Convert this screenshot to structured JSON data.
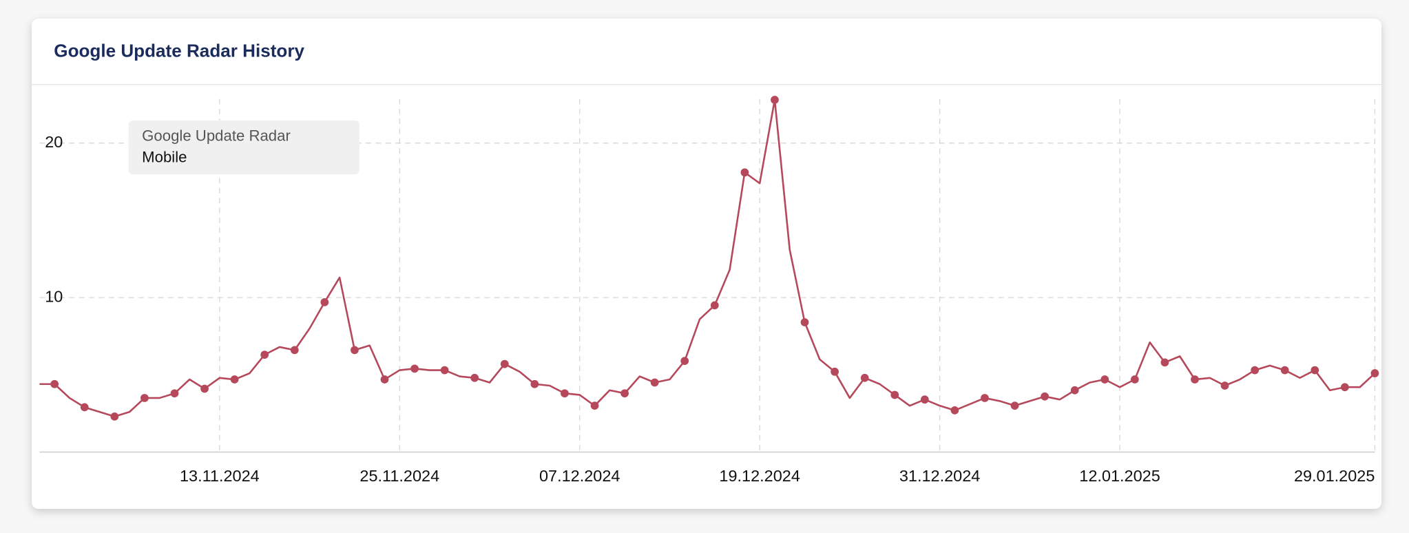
{
  "chart_data": {
    "type": "line",
    "title": "Google Update Radar History",
    "legend_title": "Google Update Radar",
    "x": [
      "01.11.2024",
      "02.11.2024",
      "03.11.2024",
      "04.11.2024",
      "05.11.2024",
      "06.11.2024",
      "07.11.2024",
      "08.11.2024",
      "09.11.2024",
      "10.11.2024",
      "11.11.2024",
      "12.11.2024",
      "13.11.2024",
      "14.11.2024",
      "15.11.2024",
      "16.11.2024",
      "17.11.2024",
      "18.11.2024",
      "19.11.2024",
      "20.11.2024",
      "21.11.2024",
      "22.11.2024",
      "23.11.2024",
      "24.11.2024",
      "25.11.2024",
      "26.11.2024",
      "27.11.2024",
      "28.11.2024",
      "29.11.2024",
      "30.11.2024",
      "01.12.2024",
      "02.12.2024",
      "03.12.2024",
      "04.12.2024",
      "05.12.2024",
      "06.12.2024",
      "07.12.2024",
      "08.12.2024",
      "09.12.2024",
      "10.12.2024",
      "11.12.2024",
      "12.12.2024",
      "13.12.2024",
      "14.12.2024",
      "15.12.2024",
      "16.12.2024",
      "17.12.2024",
      "18.12.2024",
      "19.12.2024",
      "20.12.2024",
      "21.12.2024",
      "22.12.2024",
      "23.12.2024",
      "24.12.2024",
      "25.12.2024",
      "26.12.2024",
      "27.12.2024",
      "28.12.2024",
      "29.12.2024",
      "30.12.2024",
      "31.12.2024",
      "01.01.2025",
      "02.01.2025",
      "03.01.2025",
      "04.01.2025",
      "05.01.2025",
      "06.01.2025",
      "07.01.2025",
      "08.01.2025",
      "09.01.2025",
      "10.01.2025",
      "11.01.2025",
      "12.01.2025",
      "13.01.2025",
      "14.01.2025",
      "15.01.2025",
      "16.01.2025",
      "17.01.2025",
      "18.01.2025",
      "19.01.2025",
      "20.01.2025",
      "21.01.2025",
      "22.01.2025",
      "23.01.2025",
      "24.01.2025",
      "25.01.2025",
      "26.01.2025",
      "27.01.2025",
      "28.01.2025",
      "29.01.2025"
    ],
    "series": [
      {
        "name": "Mobile",
        "color": "#b5495b",
        "values": [
          4.4,
          4.4,
          3.5,
          2.9,
          2.6,
          2.3,
          2.6,
          3.5,
          3.5,
          3.8,
          4.7,
          4.1,
          4.8,
          4.7,
          5.1,
          6.3,
          6.8,
          6.6,
          8.0,
          9.7,
          11.3,
          6.6,
          6.9,
          4.7,
          5.3,
          5.4,
          5.3,
          5.3,
          4.9,
          4.8,
          4.5,
          5.7,
          5.2,
          4.4,
          4.3,
          3.8,
          3.7,
          3.0,
          4.0,
          3.8,
          4.9,
          4.5,
          4.7,
          5.9,
          8.6,
          9.5,
          11.8,
          18.1,
          17.4,
          22.8,
          13.1,
          8.4,
          6.0,
          5.2,
          3.5,
          4.8,
          4.4,
          3.7,
          3.0,
          3.4,
          3.0,
          2.7,
          3.1,
          3.5,
          3.3,
          3.0,
          3.3,
          3.6,
          3.4,
          4.0,
          4.5,
          4.7,
          4.2,
          4.7,
          7.1,
          5.8,
          6.2,
          4.7,
          4.8,
          4.3,
          4.7,
          5.3,
          5.6,
          5.3,
          4.8,
          5.3,
          4.0,
          4.2,
          4.2,
          5.1
        ]
      }
    ],
    "xlim": [
      "01.11.2024",
      "29.01.2025"
    ],
    "xticks": [
      "13.11.2024",
      "25.11.2024",
      "07.12.2024",
      "19.12.2024",
      "31.12.2024",
      "12.01.2025",
      "29.01.2025"
    ],
    "ylim": [
      0,
      23.5
    ],
    "yticks": [
      10,
      20
    ],
    "grid": true
  }
}
